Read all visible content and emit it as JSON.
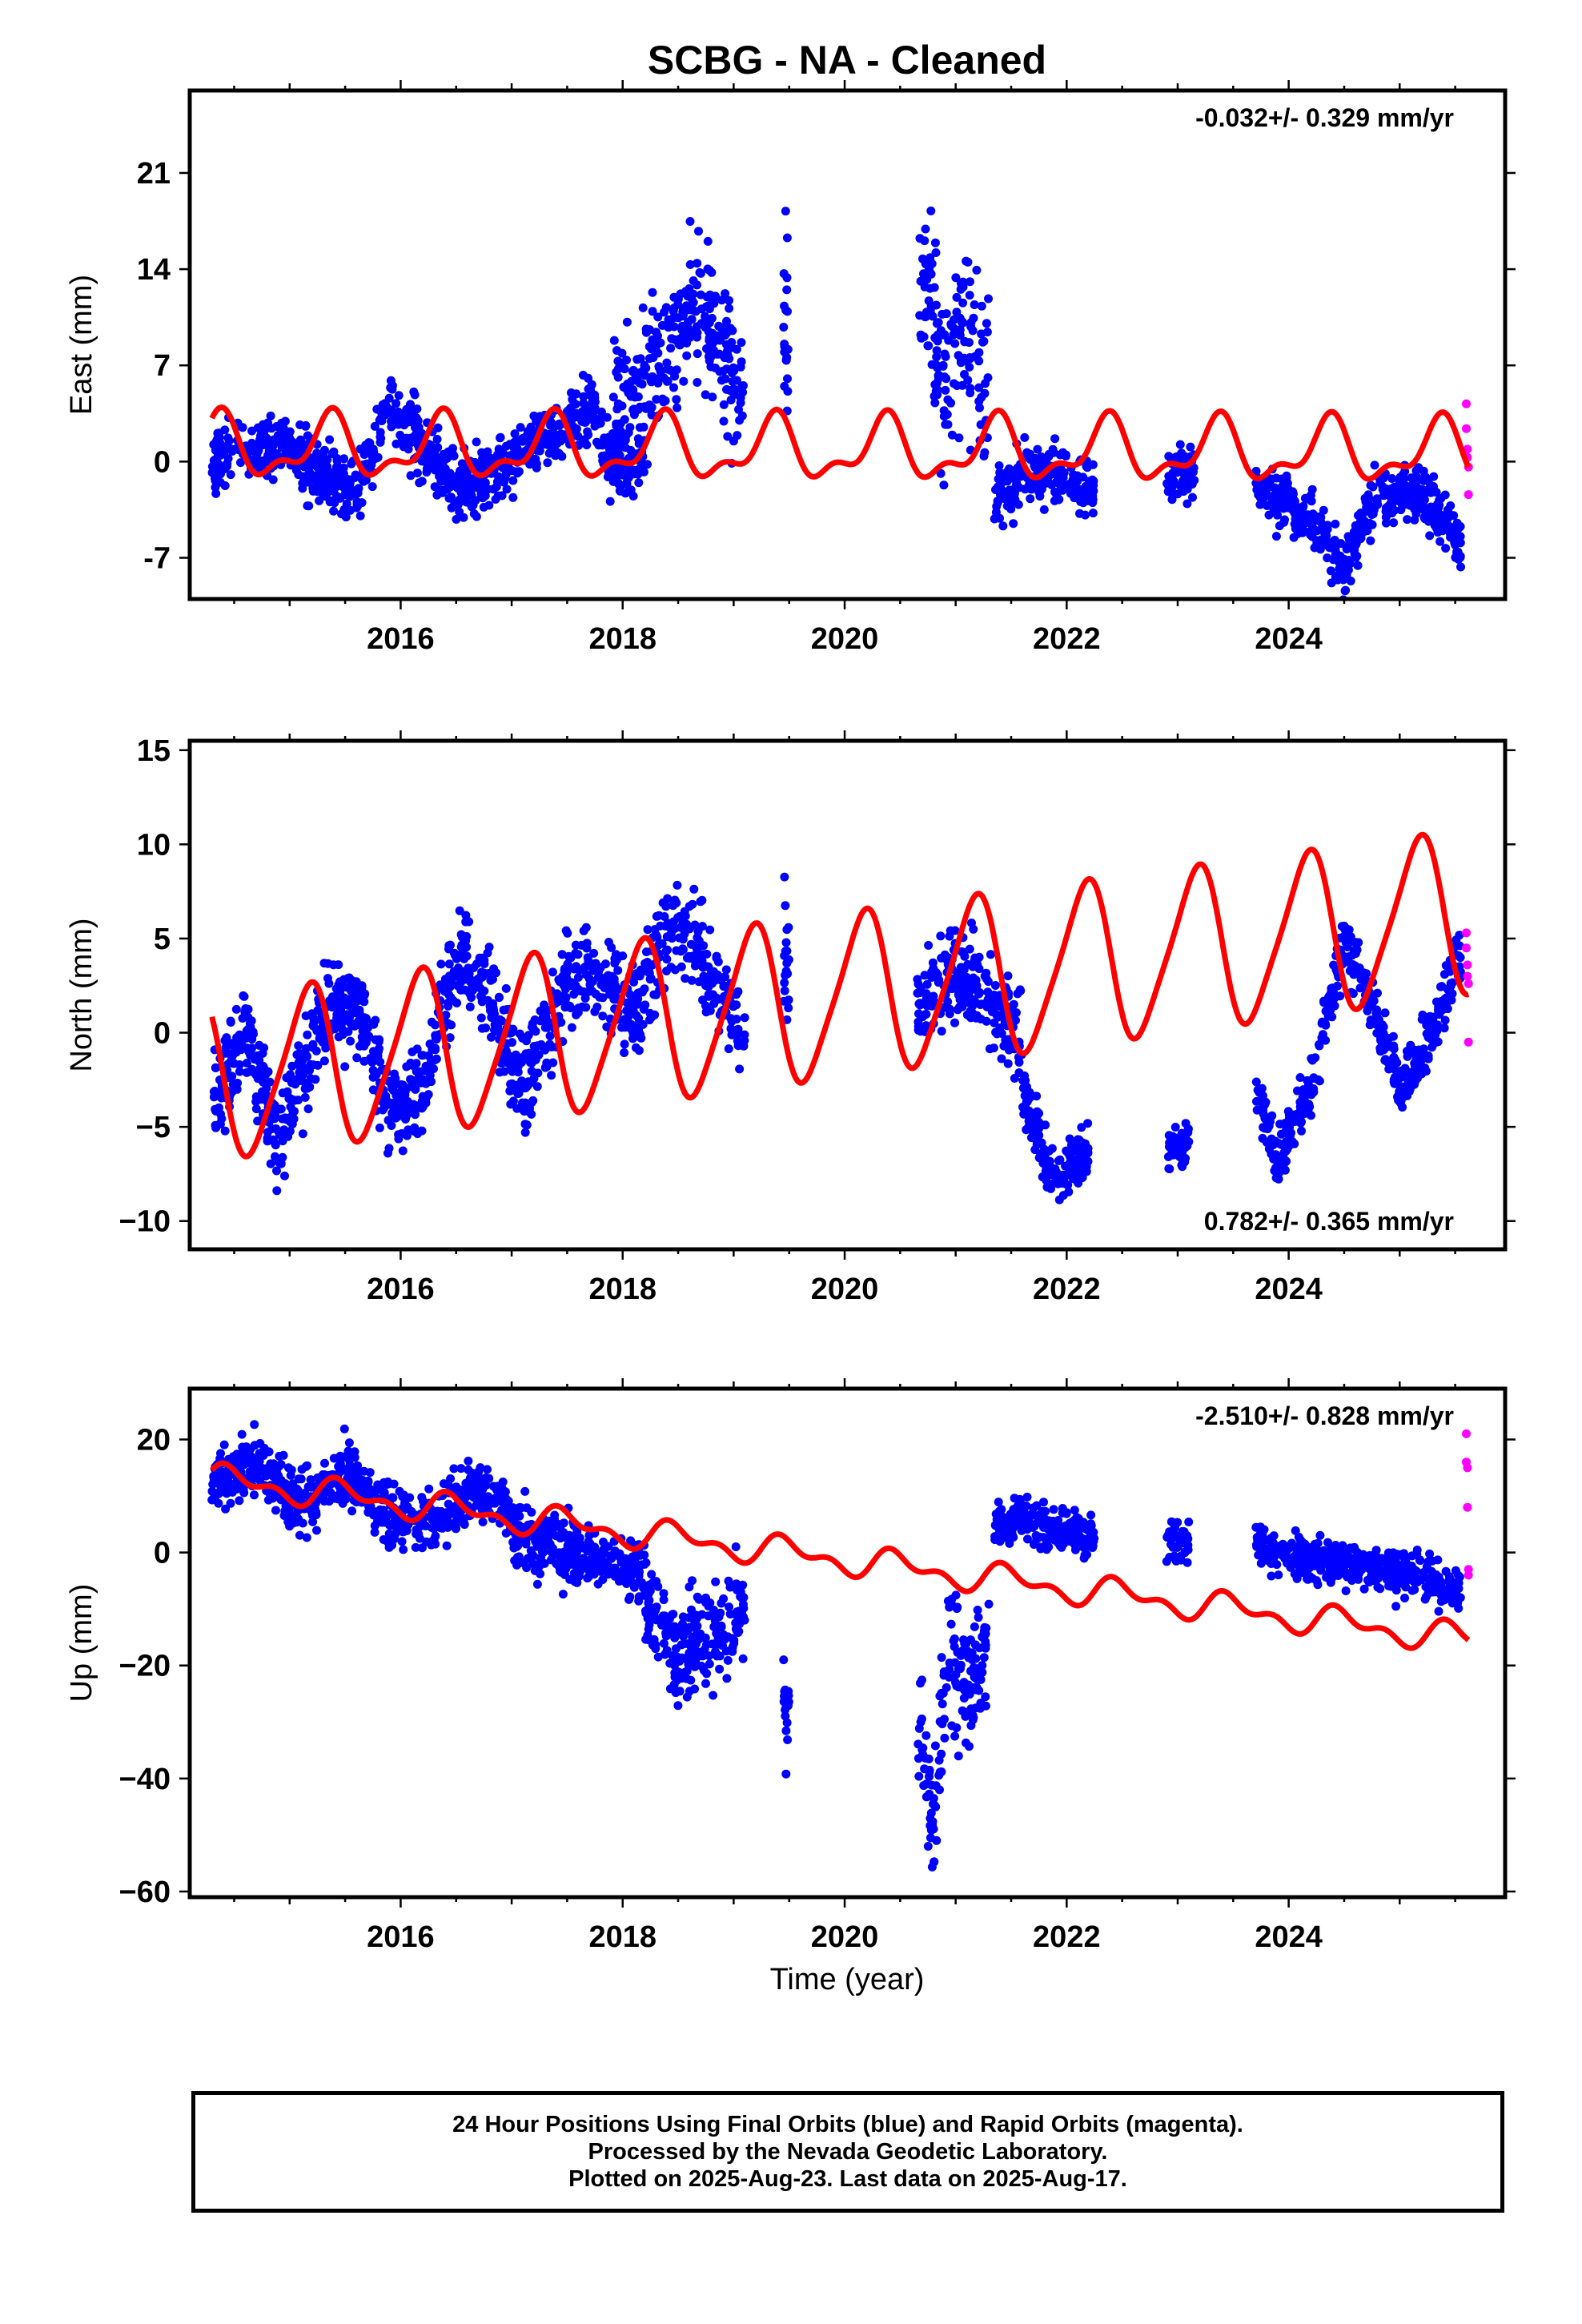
{
  "title": "SCBG  - NA - Cleaned",
  "xlabel": "Time (year)",
  "footer": {
    "line1": "24 Hour Positions Using Final Orbits (blue) and Rapid Orbits (magenta).",
    "line2": "Processed by the Nevada Geodetic Laboratory.",
    "line3": "Plotted on 2025-Aug-23. Last data on 2025-Aug-17."
  },
  "colors": {
    "final_orbits": "#0000ff",
    "rapid_orbits": "#ff00ff",
    "model": "#ff0000",
    "frame": "#000000"
  },
  "chart_data": [
    {
      "type": "scatter",
      "panel": "east",
      "ylabel": "East (mm)",
      "rate_label": "-0.032+/- 0.329 mm/yr",
      "rate_position": "top-right",
      "xlim": [
        2014.1,
        2025.95
      ],
      "ylim": [
        -10,
        27
      ],
      "xticks": [
        2016,
        2018,
        2020,
        2022,
        2024
      ],
      "xticklabels": [
        "2016",
        "2018",
        "2020",
        "2022",
        "2024"
      ],
      "yticks": [
        -7,
        0,
        7,
        14,
        21
      ],
      "yticklabels": [
        "-7",
        "0",
        "7",
        "14",
        "21"
      ],
      "series": [
        {
          "name": "Final Orbits",
          "color": "#0000ff",
          "segments": [
            {
              "x": [
                2014.3,
                2014.6,
                2015.0,
                2015.3,
                2015.6,
                2015.9,
                2016.2,
                2016.5,
                2016.8,
                2017.1,
                2017.4,
                2017.7,
                2017.9,
                2018.2
              ],
              "y": [
                0,
                1,
                1,
                -1,
                -2,
                4,
                1,
                -2,
                -1,
                1,
                2,
                4,
                0,
                0
              ],
              "spread": 2.2
            },
            {
              "x": [
                2017.9,
                2018.2,
                2018.5,
                2018.7,
                2018.9,
                2019.1
              ],
              "y": [
                4,
                6,
                9,
                12,
                8,
                5
              ],
              "spread": 4.5
            },
            {
              "x": [
                2019.45,
                2019.5
              ],
              "y": [
                10,
                8
              ],
              "spread": 6
            },
            {
              "x": [
                2020.65,
                2020.8,
                2020.95,
                2021.1,
                2021.3
              ],
              "y": [
                15,
                10,
                6,
                10,
                6
              ],
              "spread": 6
            },
            {
              "x": [
                2021.35,
                2021.6,
                2021.9,
                2022.25
              ],
              "y": [
                -3,
                -1,
                -1,
                -2
              ],
              "spread": 1.8
            },
            {
              "x": [
                2022.9,
                2023.15
              ],
              "y": [
                -1,
                -1
              ],
              "spread": 1.8
            },
            {
              "x": [
                2023.7,
                2024.0,
                2024.3,
                2024.5,
                2024.75,
                2025.0,
                2025.3,
                2025.55
              ],
              "y": [
                -2,
                -3,
                -5,
                -8,
                -3,
                -2,
                -3,
                -6
              ],
              "spread": 1.8
            }
          ]
        },
        {
          "name": "Rapid Orbits",
          "color": "#ff00ff",
          "points": [
            [
              2025.6,
              4.2
            ],
            [
              2025.6,
              2.4
            ],
            [
              2025.61,
              0.9
            ],
            [
              2025.61,
              0.3
            ],
            [
              2025.62,
              -0.4
            ],
            [
              2025.62,
              -2.4
            ]
          ]
        },
        {
          "name": "Model",
          "color": "#ff0000",
          "offset": 1.0,
          "rate": -0.032,
          "annual_amp": 2.0,
          "annual_phase": 1.2,
          "semi_amp": 1.0,
          "semi_phase": 0.3
        }
      ]
    },
    {
      "type": "scatter",
      "panel": "north",
      "ylabel": "North (mm)",
      "rate_label": "0.782+/- 0.365 mm/yr",
      "rate_position": "bottom-right",
      "xlim": [
        2014.1,
        2025.95
      ],
      "ylim": [
        -11.5,
        15.5
      ],
      "xticks": [
        2016,
        2018,
        2020,
        2022,
        2024
      ],
      "xticklabels": [
        "2016",
        "2018",
        "2020",
        "2022",
        "2024"
      ],
      "yticks": [
        -10,
        -5,
        0,
        5,
        10,
        15
      ],
      "yticklabels": [
        "−10",
        "−5",
        "0",
        "5",
        "10",
        "15"
      ],
      "series": [
        {
          "name": "Final Orbits",
          "color": "#0000ff",
          "segments": [
            {
              "x": [
                2014.3,
                2014.6,
                2014.9,
                2015.3,
                2015.6,
                2015.9,
                2016.2,
                2016.5,
                2016.8,
                2017.1,
                2017.5,
                2017.8,
                2018.1,
                2018.5,
                2018.8,
                2019.1
              ],
              "y": [
                -4,
                0,
                -6,
                1,
                2,
                -4,
                -3,
                4,
                2,
                -3,
                3,
                3,
                1,
                6,
                3,
                0
              ],
              "spread": 2.2
            },
            {
              "x": [
                2019.45,
                2019.5
              ],
              "y": [
                4,
                3
              ],
              "spread": 3
            },
            {
              "x": [
                2020.65,
                2020.9,
                2021.1,
                2021.35,
                2021.6
              ],
              "y": [
                1,
                3,
                3,
                1,
                0
              ],
              "spread": 2.2
            },
            {
              "x": [
                2021.6,
                2021.9,
                2022.2
              ],
              "y": [
                -3,
                -8,
                -6
              ],
              "spread": 1.3
            },
            {
              "x": [
                2022.9,
                2023.1
              ],
              "y": [
                -6,
                -6
              ],
              "spread": 1.3
            },
            {
              "x": [
                2023.7,
                2023.9,
                2024.2,
                2024.5,
                2024.8,
                2025.0,
                2025.3,
                2025.55
              ],
              "y": [
                -3,
                -7,
                -3,
                5,
                1,
                -3,
                0,
                4
              ],
              "spread": 1.3
            }
          ]
        },
        {
          "name": "Rapid Orbits",
          "color": "#ff00ff",
          "points": [
            [
              2025.6,
              5.3
            ],
            [
              2025.6,
              4.5
            ],
            [
              2025.61,
              3.6
            ],
            [
              2025.61,
              3.0
            ],
            [
              2025.62,
              2.6
            ],
            [
              2025.62,
              -0.5
            ]
          ]
        },
        {
          "name": "Model",
          "color": "#ff0000",
          "offset": -2.5,
          "rate": 0.782,
          "annual_amp": 4.2,
          "annual_phase": 2.45,
          "semi_amp": 0.7,
          "semi_phase": 1.9
        }
      ]
    },
    {
      "type": "scatter",
      "panel": "up",
      "ylabel": "Up (mm)",
      "rate_label": "-2.510+/- 0.828 mm/yr",
      "rate_position": "top-right",
      "xlim": [
        2014.1,
        2025.95
      ],
      "ylim": [
        -61,
        29
      ],
      "xticks": [
        2016,
        2018,
        2020,
        2022,
        2024
      ],
      "xticklabels": [
        "2016",
        "2018",
        "2020",
        "2022",
        "2024"
      ],
      "yticks": [
        -60,
        -40,
        -20,
        0,
        20
      ],
      "yticklabels": [
        "−60",
        "−40",
        "−20",
        "0",
        "20"
      ],
      "series": [
        {
          "name": "Final Orbits",
          "color": "#0000ff",
          "segments": [
            {
              "x": [
                2014.3,
                2014.7,
                2015.1,
                2015.5,
                2015.9,
                2016.3,
                2016.7,
                2017.1,
                2017.5,
                2017.9,
                2018.2
              ],
              "y": [
                13,
                16,
                8,
                14,
                6,
                5,
                12,
                3,
                0,
                -2,
                -3
              ],
              "spread": 5
            },
            {
              "x": [
                2018.2,
                2018.5,
                2018.8,
                2019.1
              ],
              "y": [
                -10,
                -18,
                -14,
                -8
              ],
              "spread": 9
            },
            {
              "x": [
                2019.45,
                2019.5
              ],
              "y": [
                -22,
                -30
              ],
              "spread": 10
            },
            {
              "x": [
                2020.65,
                2020.8,
                2020.95,
                2021.15,
                2021.3
              ],
              "y": [
                -30,
                -45,
                -15,
                -25,
                -15
              ],
              "spread": 11
            },
            {
              "x": [
                2021.35,
                2021.6,
                2021.9,
                2022.25
              ],
              "y": [
                5,
                6,
                4,
                3
              ],
              "spread": 3.5
            },
            {
              "x": [
                2022.9,
                2023.1
              ],
              "y": [
                2,
                1
              ],
              "spread": 3.5
            },
            {
              "x": [
                2023.7,
                2024.0,
                2024.4,
                2024.8,
                2025.2,
                2025.55
              ],
              "y": [
                2,
                -1,
                -2,
                -3,
                -4,
                -7
              ],
              "spread": 3.5
            }
          ]
        },
        {
          "name": "Rapid Orbits",
          "color": "#ff00ff",
          "points": [
            [
              2025.6,
              21
            ],
            [
              2025.6,
              16
            ],
            [
              2025.61,
              15
            ],
            [
              2025.61,
              8
            ],
            [
              2025.62,
              -3
            ],
            [
              2025.62,
              -4
            ]
          ]
        },
        {
          "name": "Model",
          "color": "#ff0000",
          "offset": 13,
          "rate": -2.51,
          "annual_amp": 2.0,
          "annual_phase": 0.4,
          "semi_amp": 1.4,
          "semi_phase": 0.6
        }
      ]
    }
  ]
}
